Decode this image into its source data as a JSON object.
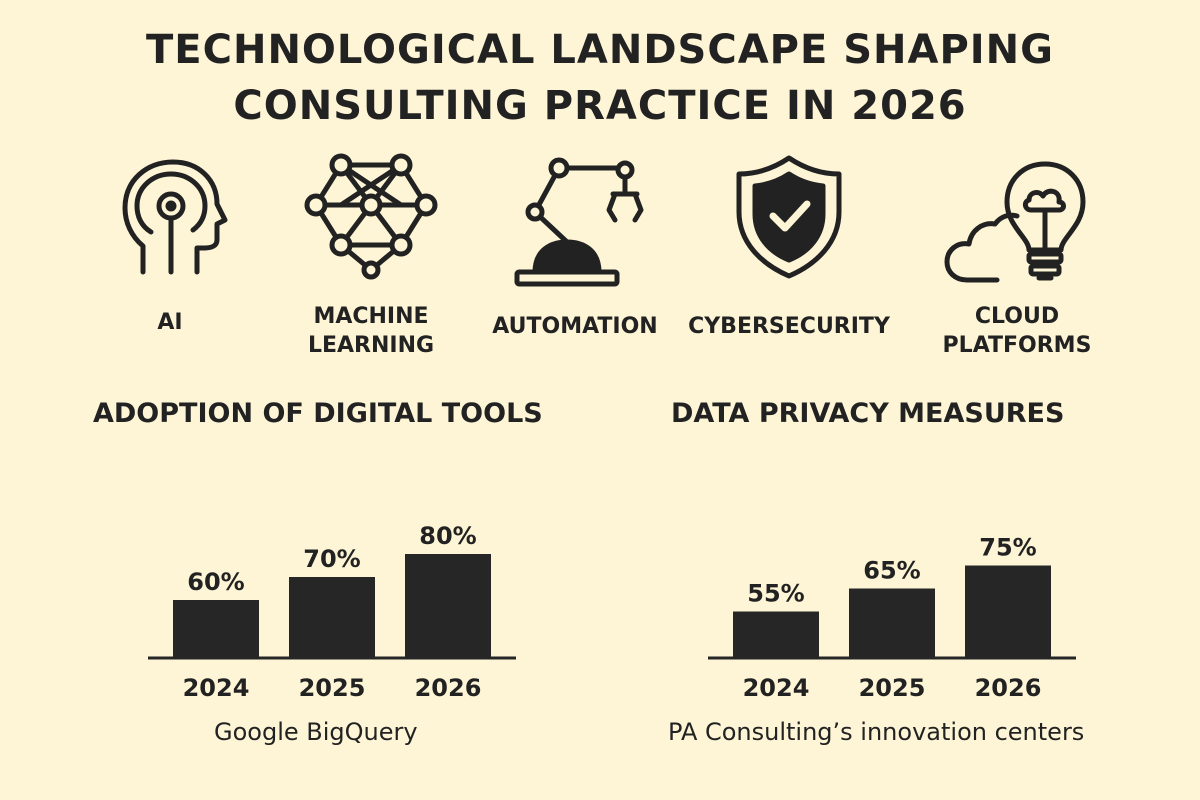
{
  "title": {
    "line1": "TECHNOLOGICAL LANDSCAPE SHAPING",
    "line2": "CONSULTING PRACTICE IN 2026"
  },
  "technologies": [
    {
      "icon": "ai-head-icon",
      "label": "AI"
    },
    {
      "icon": "neural-network-icon",
      "label": "MACHINE\nLEARNING"
    },
    {
      "icon": "robotic-arm-icon",
      "label": "AUTOMATION"
    },
    {
      "icon": "shield-check-icon",
      "label": "CYBERSECURITY"
    },
    {
      "icon": "cloud-lightbulb-icon",
      "label": "CLOUD\nPLATFORMS"
    }
  ],
  "colors": {
    "background": "#fdf5d6",
    "bar": "#262626",
    "text": "#222222"
  },
  "chart_data": [
    {
      "type": "bar",
      "title": "ADOPTION OF DIGITAL TOOLS",
      "categories": [
        "2024",
        "2025",
        "2026"
      ],
      "values": [
        60,
        70,
        80
      ],
      "value_labels": [
        "60%",
        "70%",
        "80%"
      ],
      "caption": "Google BigQuery",
      "xlabel": "",
      "ylabel": "",
      "grid": false
    },
    {
      "type": "bar",
      "title": "DATA PRIVACY MEASURES",
      "categories": [
        "2024",
        "2025",
        "2026"
      ],
      "values": [
        55,
        65,
        75
      ],
      "value_labels": [
        "55%",
        "65%",
        "75%"
      ],
      "caption": "PA Consulting’s innovation centers",
      "xlabel": "",
      "ylabel": "",
      "grid": false
    }
  ]
}
